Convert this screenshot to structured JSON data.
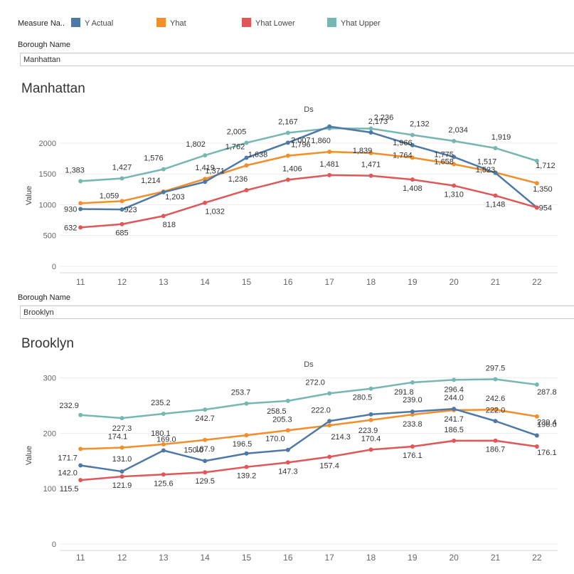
{
  "legend": {
    "title": "Measure Na..",
    "items": [
      {
        "label": "Y Actual",
        "color": "#4e79a7"
      },
      {
        "label": "Yhat",
        "color": "#f28e2b"
      },
      {
        "label": "Yhat Lower",
        "color": "#e15759"
      },
      {
        "label": "Yhat Upper",
        "color": "#76b7b2"
      }
    ]
  },
  "filters": [
    {
      "label": "Borough Name",
      "value": "Manhattan"
    },
    {
      "label": "Borough Name",
      "value": "Brooklyn"
    }
  ],
  "chart_data": [
    {
      "type": "line",
      "title": "Manhattan",
      "xlabel": "Ds",
      "ylabel": "Value",
      "x": [
        11,
        12,
        13,
        14,
        15,
        16,
        17,
        18,
        19,
        20,
        21,
        22
      ],
      "ylim": [
        0,
        2300
      ],
      "yticks": [
        0,
        500,
        1000,
        1500,
        2000
      ],
      "ytick_labels": [
        "0",
        "500",
        "1000",
        "1500",
        "2000"
      ],
      "series": [
        {
          "name": "Yhat Upper",
          "values": [
            1383,
            1427,
            1576,
            1802,
            2005,
            2167,
            2240,
            2236,
            2132,
            2034,
            1919,
            1712
          ],
          "labels": [
            "1,383",
            "1,427",
            "1,576",
            "1,802",
            "2,005",
            "2,167",
            "",
            "2,236",
            "2,132",
            "2,034",
            "1,919",
            "1,712"
          ]
        },
        {
          "name": "Yhat",
          "values": [
            1025,
            1059,
            1214,
            1419,
            1638,
            1796,
            1860,
            1839,
            1764,
            1658,
            1523,
            1350
          ],
          "labels": [
            "",
            "1,059",
            "1,214",
            "1,419",
            "1,638",
            "1,796",
            "1,860",
            "1,839",
            "1,764",
            "1,658",
            "1,523",
            "1,350"
          ]
        },
        {
          "name": "Y Actual",
          "values": [
            930,
            923,
            1203,
            1371,
            1762,
            2007,
            2270,
            2173,
            1966,
            1775,
            1517,
            954
          ],
          "labels": [
            "930",
            "923",
            "1,203",
            "1,371",
            "1,762",
            "2,007",
            "",
            "2,173",
            "1,966",
            "1,775",
            "1,517",
            "954"
          ]
        },
        {
          "name": "Yhat Lower",
          "values": [
            632,
            685,
            818,
            1032,
            1236,
            1406,
            1481,
            1471,
            1408,
            1310,
            1148,
            954
          ],
          "labels": [
            "632",
            "685",
            "818",
            "1,032",
            "1,236",
            "1,406",
            "1,481",
            "1,471",
            "1,408",
            "1,310",
            "1,148",
            ""
          ]
        }
      ]
    },
    {
      "type": "line",
      "title": "Brooklyn",
      "xlabel": "Ds",
      "ylabel": "Value",
      "x": [
        11,
        12,
        13,
        14,
        15,
        16,
        17,
        18,
        19,
        20,
        21,
        22
      ],
      "ylim": [
        0,
        320
      ],
      "yticks": [
        0,
        100,
        200,
        300
      ],
      "ytick_labels": [
        "0",
        "100",
        "200",
        "300"
      ],
      "series": [
        {
          "name": "Yhat Upper",
          "values": [
            232.9,
            227.3,
            235.2,
            242.7,
            253.7,
            258.5,
            272.0,
            280.5,
            291.8,
            296.4,
            297.5,
            287.8
          ],
          "labels": [
            "232.9",
            "227.3",
            "235.2",
            "242.7",
            "253.7",
            "258.5",
            "272.0",
            "280.5",
            "291.8",
            "296.4",
            "297.5",
            "287.8"
          ]
        },
        {
          "name": "Yhat",
          "values": [
            171.7,
            174.1,
            180.1,
            187.9,
            196.5,
            205.3,
            214.3,
            223.9,
            233.8,
            241.7,
            242.6,
            230.4
          ],
          "labels": [
            "171.7",
            "174.1",
            "180.1",
            "187.9",
            "196.5",
            "205.3",
            "214.3",
            "223.9",
            "233.8",
            "241.7",
            "242.6",
            "230.4"
          ]
        },
        {
          "name": "Y Actual",
          "values": [
            142.0,
            131.0,
            169.0,
            150.0,
            163.5,
            170.0,
            222.0,
            234.0,
            239.0,
            244.0,
            222.0,
            196.0
          ],
          "labels": [
            "142.0",
            "131.0",
            "169.0",
            "150.0",
            "",
            "170.0",
            "222.0",
            "",
            "239.0",
            "244.0",
            "222.0",
            "196.0"
          ]
        },
        {
          "name": "Yhat Lower",
          "values": [
            115.5,
            121.9,
            125.6,
            129.5,
            139.2,
            147.3,
            157.4,
            170.4,
            176.1,
            186.5,
            186.7,
            176.1
          ],
          "labels": [
            "115.5",
            "121.9",
            "125.6",
            "129.5",
            "139.2",
            "147.3",
            "157.4",
            "170.4",
            "176.1",
            "186.5",
            "186.7",
            "176.1"
          ]
        }
      ]
    }
  ]
}
